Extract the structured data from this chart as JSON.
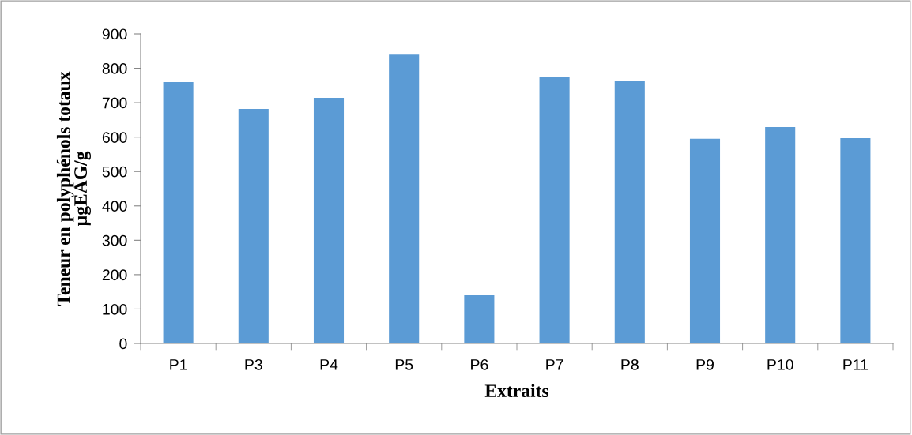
{
  "chart_data": {
    "type": "bar",
    "xlabel": "Extraits",
    "ylabel": "Teneur en polyphénols totaux\nµgEAG/g",
    "categories": [
      "P1",
      "P3",
      "P4",
      "P5",
      "P6",
      "P7",
      "P8",
      "P9",
      "P10",
      "P11"
    ],
    "values": [
      760,
      682,
      714,
      840,
      140,
      774,
      762,
      595,
      629,
      597
    ],
    "color": "#5b9bd5",
    "ylim": [
      0,
      900
    ],
    "yticks": [
      0,
      100,
      200,
      300,
      400,
      500,
      600,
      700,
      800,
      900
    ],
    "grid": false
  }
}
